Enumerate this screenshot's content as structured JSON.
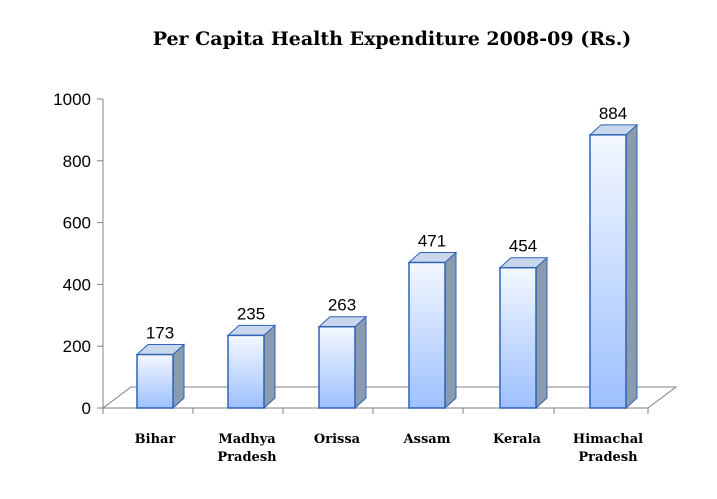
{
  "chart_data": {
    "type": "bar",
    "title": "Per Capita Health Expenditure 2008-09 (Rs.)",
    "categories": [
      [
        "Bihar"
      ],
      [
        "Madhya",
        "Pradesh"
      ],
      [
        "Orissa"
      ],
      [
        "Assam"
      ],
      [
        "Kerala"
      ],
      [
        "Himachal",
        "Pradesh"
      ]
    ],
    "values": [
      173,
      235,
      263,
      471,
      454,
      884
    ],
    "data_labels": [
      "173",
      "235",
      "263",
      "471",
      "454",
      "884"
    ],
    "yticks": [
      "0",
      "200",
      "400",
      "600",
      "800",
      "1000"
    ],
    "ylim": [
      0,
      1000
    ],
    "xlabel": "",
    "ylabel": "",
    "grid": false,
    "legend": "none",
    "colors": {
      "bar_front_top": "#f4f8ff",
      "bar_front_bottom": "#9dc0ff",
      "bar_side": "#8a9bb0",
      "bar_top": "#c9d7ec",
      "bar_outline": "#2f63b8",
      "floor": "#ffffff",
      "axis": "#808080"
    }
  }
}
